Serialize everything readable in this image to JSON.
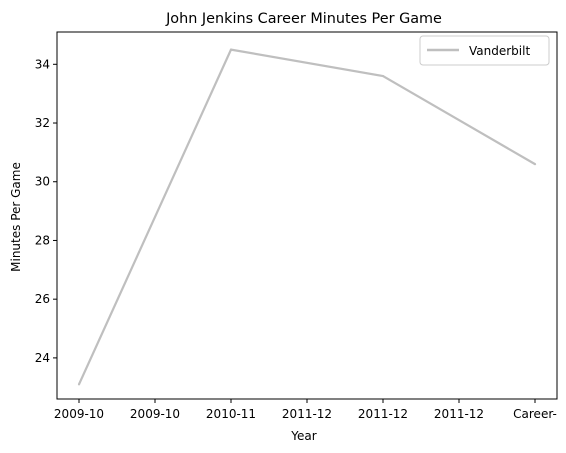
{
  "chart_data": {
    "type": "line",
    "title": "John Jenkins  Career Minutes Per Game",
    "xlabel": "Year",
    "ylabel": "Minutes Per Game",
    "x": [
      "2009-10",
      "2010-11",
      "2011-12",
      "Career-"
    ],
    "x_ticks": [
      "2009-10",
      "2009-10",
      "2010-11",
      "2011-12",
      "2011-12",
      "2011-12",
      "Career-"
    ],
    "ylim": [
      22.6,
      35.1
    ],
    "y_ticks": [
      24,
      26,
      28,
      30,
      32,
      34
    ],
    "grid": false,
    "legend_position": "top-right",
    "series": [
      {
        "name": "Vanderbilt",
        "color": "#bfbfbf",
        "values": [
          23.1,
          34.5,
          33.6,
          30.6
        ]
      }
    ]
  }
}
